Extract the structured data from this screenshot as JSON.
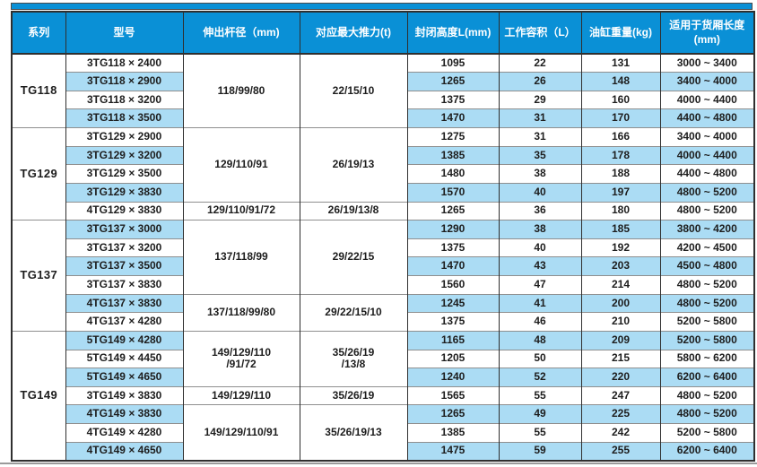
{
  "colors": {
    "header_bg": "#0a90d6",
    "row_alt_bg": "#abdcf4",
    "border_dark": "#2f2f2f",
    "border_gray": "#8f8f8f",
    "text_dark": "#1d1d1d"
  },
  "chart_data": {
    "type": "table",
    "columns": [
      "系列",
      "型号",
      "伸出杆径（mm)",
      "对应最大推力(t)",
      "封闭高度L(mm)",
      "工作容积（L）",
      "油缸重量(kg)",
      "适用于货厢长度\n(mm)"
    ],
    "sections": [
      {
        "series": "TG118",
        "groups": [
          {
            "rod": "118/99/80",
            "thrust": "22/15/10",
            "rows": [
              {
                "model": "3TG118 × 2400",
                "height": "1095",
                "volume": "22",
                "weight": "131",
                "range": "3000 ~ 3400"
              },
              {
                "model": "3TG118 × 2900",
                "height": "1265",
                "volume": "26",
                "weight": "148",
                "range": "3400 ~ 4000"
              },
              {
                "model": "3TG118 × 3200",
                "height": "1375",
                "volume": "29",
                "weight": "160",
                "range": "4000 ~ 4400"
              },
              {
                "model": "3TG118 × 3500",
                "height": "1470",
                "volume": "31",
                "weight": "170",
                "range": "4400 ~ 4800"
              }
            ]
          }
        ]
      },
      {
        "series": "TG129",
        "groups": [
          {
            "rod": "129/110/91",
            "thrust": "26/19/13",
            "rows": [
              {
                "model": "3TG129 × 2900",
                "height": "1275",
                "volume": "31",
                "weight": "166",
                "range": "3400 ~ 4000"
              },
              {
                "model": "3TG129 × 3200",
                "height": "1385",
                "volume": "35",
                "weight": "178",
                "range": "4000 ~ 4400"
              },
              {
                "model": "3TG129 × 3500",
                "height": "1480",
                "volume": "38",
                "weight": "188",
                "range": "4400 ~ 4800"
              },
              {
                "model": "3TG129 × 3830",
                "height": "1570",
                "volume": "40",
                "weight": "197",
                "range": "4800 ~ 5200"
              }
            ]
          },
          {
            "rod": "129/110/91/72",
            "thrust": "26/19/13/8",
            "rows": [
              {
                "model": "4TG129 × 3830",
                "height": "1265",
                "volume": "36",
                "weight": "180",
                "range": "4800 ~ 5200"
              }
            ]
          }
        ]
      },
      {
        "series": "TG137",
        "groups": [
          {
            "rod": "137/118/99",
            "thrust": "29/22/15",
            "rows": [
              {
                "model": "3TG137 × 3000",
                "height": "1290",
                "volume": "38",
                "weight": "185",
                "range": "3800 ~ 4200"
              },
              {
                "model": "3TG137 × 3200",
                "height": "1375",
                "volume": "40",
                "weight": "192",
                "range": "4200 ~ 4500"
              },
              {
                "model": "3TG137 × 3500",
                "height": "1470",
                "volume": "43",
                "weight": "203",
                "range": "4500 ~ 4800"
              },
              {
                "model": "3TG137 × 3830",
                "height": "1560",
                "volume": "47",
                "weight": "214",
                "range": "4800 ~ 5200"
              }
            ]
          },
          {
            "rod": "137/118/99/80",
            "thrust": "29/22/15/10",
            "rows": [
              {
                "model": "4TG137 × 3830",
                "height": "1245",
                "volume": "41",
                "weight": "200",
                "range": "4800 ~ 5200"
              },
              {
                "model": "4TG137 × 4280",
                "height": "1375",
                "volume": "46",
                "weight": "210",
                "range": "5200 ~ 5800"
              }
            ]
          }
        ]
      },
      {
        "series": "TG149",
        "groups": [
          {
            "rod": "149/129/110\n/91/72",
            "thrust": "35/26/19\n/13/8",
            "rows": [
              {
                "model": "5TG149 × 4280",
                "height": "1165",
                "volume": "48",
                "weight": "209",
                "range": "5200 ~ 5800"
              },
              {
                "model": "5TG149 × 4450",
                "height": "1205",
                "volume": "50",
                "weight": "215",
                "range": "5800 ~ 6200"
              },
              {
                "model": "5TG149 × 4650",
                "height": "1240",
                "volume": "52",
                "weight": "220",
                "range": "6200 ~ 6400"
              }
            ]
          },
          {
            "rod": "149/129/110",
            "thrust": "35/26/19",
            "rows": [
              {
                "model": "3TG149 × 3830",
                "height": "1565",
                "volume": "55",
                "weight": "247",
                "range": "4800 ~ 5200"
              }
            ]
          },
          {
            "rod": "149/129/110/91",
            "thrust": "35/26/19/13",
            "rows": [
              {
                "model": "4TG149 × 3830",
                "height": "1265",
                "volume": "49",
                "weight": "225",
                "range": "4800 ~ 5200"
              },
              {
                "model": "4TG149 × 4280",
                "height": "1385",
                "volume": "55",
                "weight": "242",
                "range": "5200 ~ 5800"
              },
              {
                "model": "4TG149 × 4650",
                "height": "1475",
                "volume": "59",
                "weight": "255",
                "range": "6200 ~ 6400"
              }
            ]
          }
        ]
      }
    ]
  }
}
